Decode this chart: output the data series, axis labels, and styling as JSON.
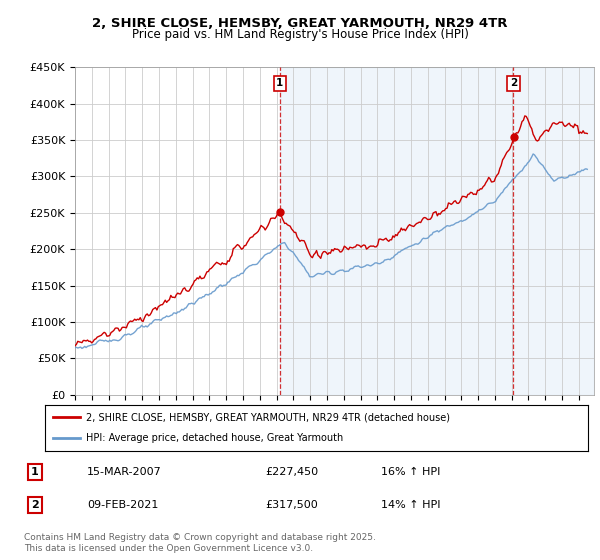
{
  "title": "2, SHIRE CLOSE, HEMSBY, GREAT YARMOUTH, NR29 4TR",
  "subtitle": "Price paid vs. HM Land Registry's House Price Index (HPI)",
  "ylabel": "",
  "ylim": [
    0,
    450000
  ],
  "yticks": [
    0,
    50000,
    100000,
    150000,
    200000,
    250000,
    300000,
    350000,
    400000,
    450000
  ],
  "ytick_labels": [
    "£0",
    "£50K",
    "£100K",
    "£150K",
    "£200K",
    "£250K",
    "£300K",
    "£350K",
    "£400K",
    "£450K"
  ],
  "price_color": "#cc0000",
  "hpi_color": "#6699cc",
  "hpi_fill_color": "#ddeeff",
  "bg_color": "#ffffff",
  "grid_color": "#cccccc",
  "ann1_x": 2007.2,
  "ann2_x": 2021.1,
  "legend_price": "2, SHIRE CLOSE, HEMSBY, GREAT YARMOUTH, NR29 4TR (detached house)",
  "legend_hpi": "HPI: Average price, detached house, Great Yarmouth",
  "footer": "Contains HM Land Registry data © Crown copyright and database right 2025.\nThis data is licensed under the Open Government Licence v3.0.",
  "xmin": 1995,
  "xmax": 2025.9
}
